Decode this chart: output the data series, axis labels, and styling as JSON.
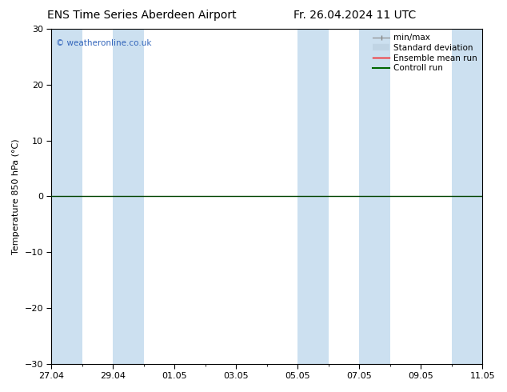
{
  "title_left": "ENS Time Series Aberdeen Airport",
  "title_right": "Fr. 26.04.2024 11 UTC",
  "ylabel": "Temperature 850 hPa (°C)",
  "ylim": [
    -30,
    30
  ],
  "yticks": [
    -30,
    -20,
    -10,
    0,
    10,
    20,
    30
  ],
  "xlim": [
    0,
    14
  ],
  "xtick_labels": [
    "27.04",
    "29.04",
    "01.05",
    "03.05",
    "05.05",
    "07.05",
    "09.05",
    "11.05"
  ],
  "xtick_positions": [
    0,
    2,
    4,
    6,
    8,
    10,
    12,
    14
  ],
  "band_color": "#cce0f0",
  "bands": [
    [
      0,
      1
    ],
    [
      2,
      3
    ],
    [
      8,
      9
    ],
    [
      10,
      11
    ],
    [
      13,
      14
    ]
  ],
  "background_color": "#ffffff",
  "plot_bg_color": "#ffffff",
  "watermark": "© weatheronline.co.uk",
  "watermark_color": "#3366bb",
  "legend_items": [
    {
      "label": "min/max",
      "color": "#aaaaaa",
      "lw": 1.0
    },
    {
      "label": "Standard deviation",
      "color": "#c8d8e8",
      "lw": 6
    },
    {
      "label": "Ensemble mean run",
      "color": "#ff0000",
      "lw": 1.0
    },
    {
      "label": "Controll run",
      "color": "#006600",
      "lw": 1.5
    }
  ],
  "zero_line_y": 0,
  "zero_line_color": "#004400",
  "zero_line_lw": 1.0,
  "title_fontsize": 10,
  "axis_fontsize": 8,
  "tick_fontsize": 8,
  "legend_fontsize": 7.5
}
